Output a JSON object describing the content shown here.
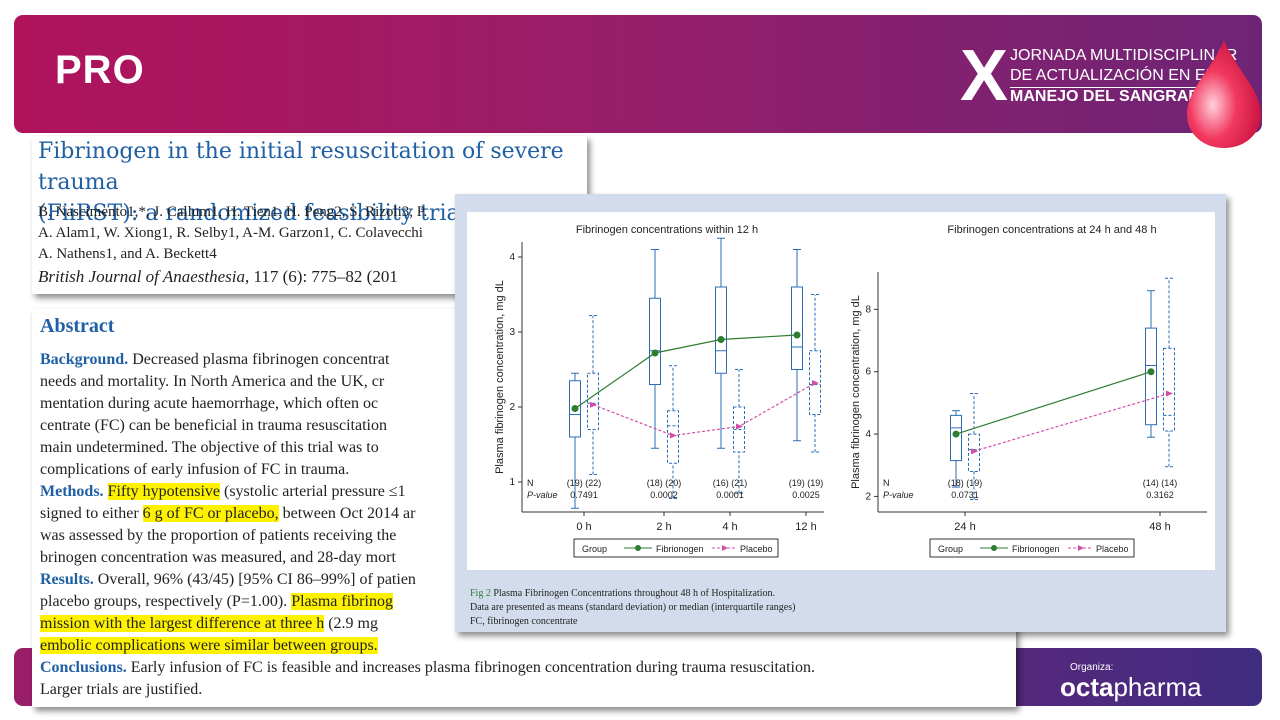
{
  "slide": {
    "label": "PRO",
    "event_lines": [
      "JORNADA MULTIDISCIPLINAR",
      "DE ACTUALIZACIÓN EN EL",
      "MANEJO DEL SANGRADO"
    ],
    "event_numeral": "X",
    "organizer_label": "Organiza:",
    "organizer_name_a": "octa",
    "organizer_name_b": "pharma"
  },
  "paper": {
    "title_line1": "Fibrinogen in the initial resuscitation of severe trauma",
    "title_line2": "(FiiRST): a randomized feasibility trial",
    "authors_line1": "B. Nascimento1,*, J. Callum1, H. Tien1, H. Peng2, S. Rizoli3, P.",
    "authors_line2": "A. Alam1, W. Xiong1, R. Selby1, A-M. Garzon1, C. Colavecchi",
    "authors_line3": "A. Nathens1, and A. Beckett4",
    "journal": "British Journal of Anaesthesia",
    "citation": ", 117 (6): 775–82 (201"
  },
  "abstract": {
    "heading": "Abstract",
    "background_label": "Background.",
    "background_l1": " Decreased plasma fibrinogen concentrat",
    "background_l2": "needs and mortality. In North America and the UK, cr",
    "background_l3": "mentation during acute haemorrhage, which often oc",
    "background_l4": "centrate (FC) can be beneficial in trauma resuscitation",
    "background_l5": "main undetermined. The objective of this trial was to",
    "background_l6": "complications of early infusion of FC in trauma.",
    "methods_label": "Methods.",
    "methods_hl1": "Fifty hypotensive",
    "methods_l1b": " (systolic arterial pressure ≤1",
    "methods_l2a": "signed to either ",
    "methods_hl2": "6 g of FC or placebo,",
    "methods_l2b": " between Oct 2014 ar",
    "methods_l3": "was assessed by the proportion of patients receiving the",
    "methods_l4": "brinogen concentration was measured, and 28-day mort",
    "results_label": "Results.",
    "results_l1": " Overall, 96% (43/45) [95% CI 86–99%] of patien",
    "results_l2a": "placebo groups, respectively (P=1.00). ",
    "results_hl1": "Plasma fibrinog",
    "results_hl2": "mission with the largest difference at three h",
    "results_l3b": " (2.9 mg",
    "results_hl3": "embolic complications were similar between groups.",
    "conclusions_label": "Conclusions.",
    "conclusions_l1": " Early infusion of FC is feasible and increases plasma fibrinogen concentration during trauma resuscitation.",
    "conclusions_l2": "Larger trials are justified."
  },
  "figure": {
    "caption_label": "Fig 2",
    "caption_title": " Plasma Fibrinogen Concentrations throughout 48 h of Hospitalization.",
    "caption_l2": "Data are presented as means (standard deviation) or median (interquartile ranges)",
    "caption_l3": "FC, fibrinogen concentrate"
  },
  "chart_data": [
    {
      "type": "box",
      "title": "Fibrinogen concentrations within 12 h",
      "ylabel": "Plasma fibrinogen concentration, mg dL",
      "categories": [
        "0 h",
        "2 h",
        "4 h",
        "12 h"
      ],
      "yticks": [
        1,
        2,
        3,
        4
      ],
      "ylim": [
        0.6,
        4.2
      ],
      "n_label": "N",
      "p_label": "P-value",
      "n": [
        "(19) (22)",
        "(18) (20)",
        "(16) (21)",
        "(19) (19)"
      ],
      "p_values": [
        "0.7491",
        "0.0002",
        "0.0001",
        "0.0025"
      ],
      "legend_title": "Group",
      "series": [
        {
          "name": "Fibrionogen",
          "color": "#2e7d32",
          "means": [
            1.98,
            2.72,
            2.9,
            2.96
          ],
          "boxes": [
            [
              0.65,
              1.6,
              1.9,
              2.35,
              2.45
            ],
            [
              1.45,
              2.3,
              2.75,
              3.45,
              4.1
            ],
            [
              1.45,
              2.45,
              2.75,
              3.6,
              4.25
            ],
            [
              1.55,
              2.5,
              2.8,
              3.6,
              4.1
            ]
          ]
        },
        {
          "name": "Placebo",
          "color": "#d04fa8",
          "means": [
            2.03,
            1.62,
            1.74,
            2.32
          ],
          "boxes": [
            [
              1.1,
              1.7,
              2.05,
              2.45,
              3.22
            ],
            [
              0.78,
              1.25,
              1.75,
              1.95,
              2.55
            ],
            [
              0.85,
              1.4,
              1.7,
              2.0,
              2.5
            ],
            [
              1.4,
              1.9,
              2.3,
              2.75,
              3.5
            ]
          ]
        }
      ]
    },
    {
      "type": "box",
      "title": "Fibrinogen concentrations at 24 h and 48 h",
      "ylabel": "Plasma fibrinogen concentration, mg dL",
      "categories": [
        "24 h",
        "48 h"
      ],
      "yticks": [
        2,
        4,
        6,
        8
      ],
      "ylim": [
        1.5,
        9.2
      ],
      "n_label": "N",
      "p_label": "P-value",
      "n": [
        "(18) (19)",
        "(14) (14)"
      ],
      "p_values": [
        "0.0731",
        "0.3162"
      ],
      "legend_title": "Group",
      "series": [
        {
          "name": "Fibrionogen",
          "color": "#2e7d32",
          "means": [
            4.0,
            6.0
          ],
          "boxes": [
            [
              2.3,
              3.15,
              4.2,
              4.6,
              4.75
            ],
            [
              3.9,
              4.3,
              6.2,
              7.4,
              8.6
            ]
          ]
        },
        {
          "name": "Placebo",
          "color": "#d04fa8",
          "means": [
            3.45,
            5.3
          ],
          "boxes": [
            [
              1.9,
              2.8,
              3.5,
              4.0,
              5.3
            ],
            [
              2.95,
              4.1,
              4.6,
              6.75,
              9.0
            ]
          ]
        }
      ]
    }
  ]
}
